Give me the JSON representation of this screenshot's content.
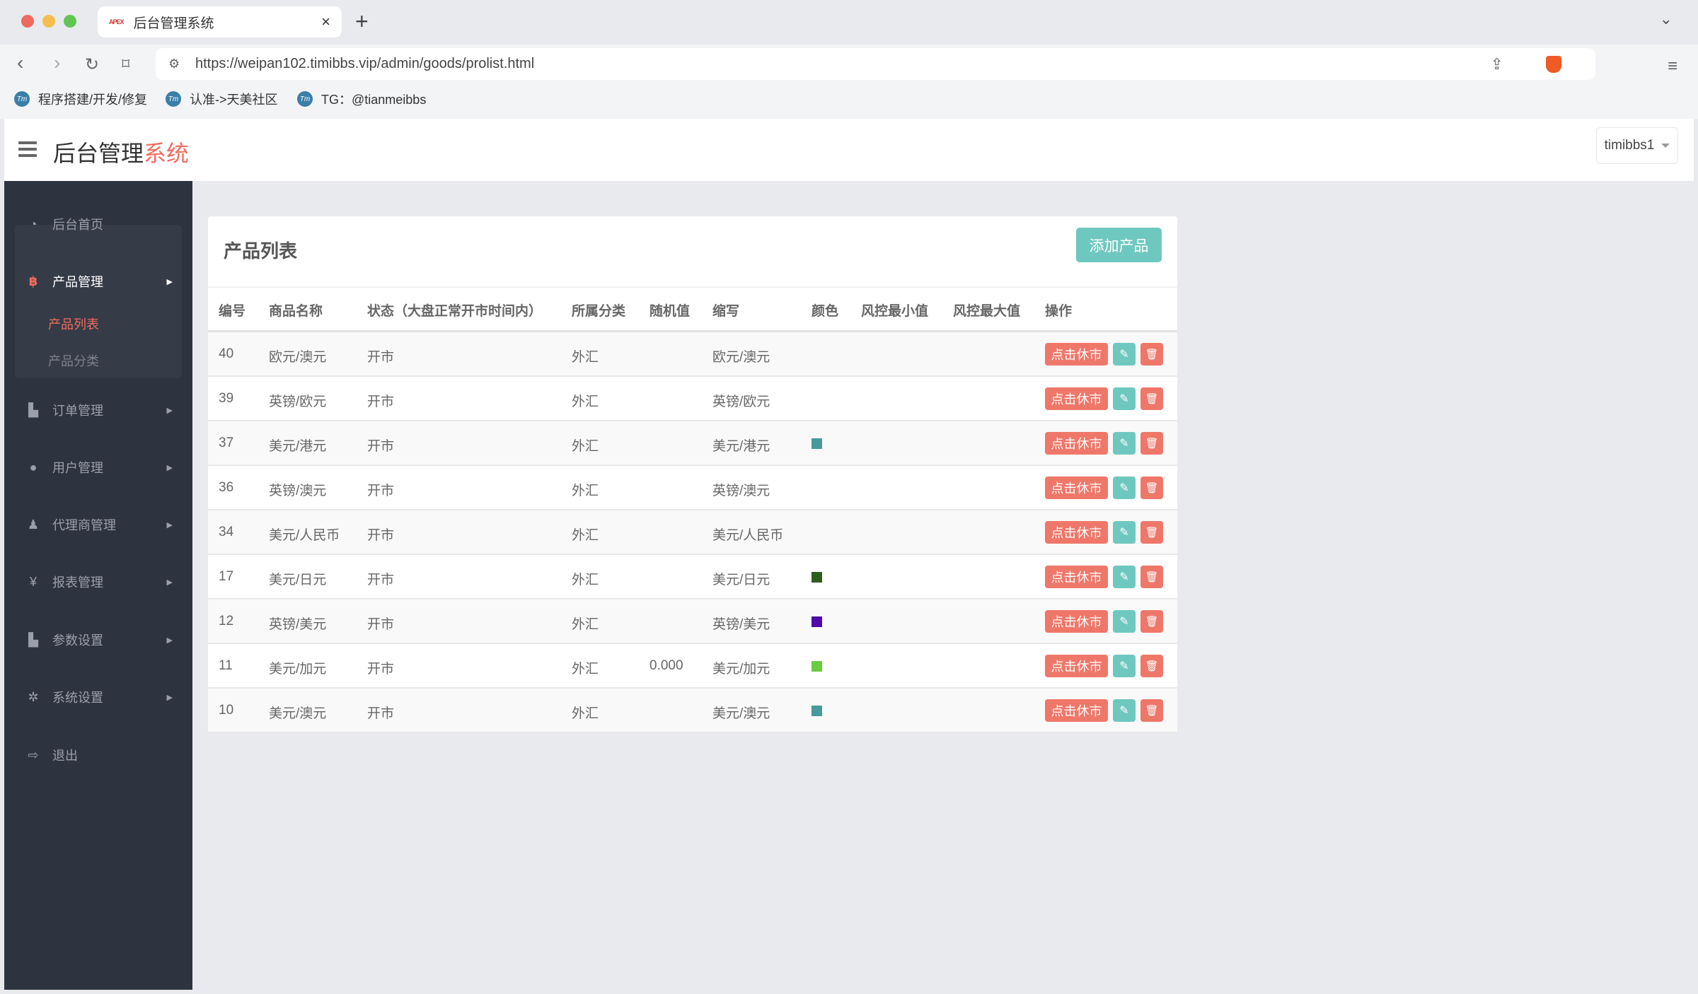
{
  "browser": {
    "tab_title": "后台管理系统",
    "favicon": "APEX",
    "url": "https://weipan102.timibbs.vip/admin/goods/prolist.html",
    "bookmarks": [
      {
        "label": "程序搭建/开发/修复"
      },
      {
        "label": "认准->天美社区"
      },
      {
        "label": "TG：@tianmeibbs"
      }
    ]
  },
  "header": {
    "title_main": "后台管理",
    "title_accent": "系统",
    "user": "timibbs1"
  },
  "sidebar": {
    "items": [
      {
        "label": "后台首页",
        "icon": "dashboard-icon"
      },
      {
        "label": "产品管理",
        "icon": "bitcoin-icon",
        "active": true,
        "children": [
          {
            "label": "产品列表",
            "active": true
          },
          {
            "label": "产品分类"
          }
        ]
      },
      {
        "label": "订单管理",
        "icon": "files-icon"
      },
      {
        "label": "用户管理",
        "icon": "user-icon"
      },
      {
        "label": "代理商管理",
        "icon": "agent-icon"
      },
      {
        "label": "报表管理",
        "icon": "yen-icon"
      },
      {
        "label": "参数设置",
        "icon": "files-icon"
      },
      {
        "label": "系统设置",
        "icon": "gears-icon"
      },
      {
        "label": "退出",
        "icon": "sign-out-icon"
      }
    ]
  },
  "main": {
    "title": "产品列表",
    "add_button": "添加产品",
    "columns": [
      "编号",
      "商品名称",
      "状态（大盘正常开市时间内）",
      "所属分类",
      "随机值",
      "缩写",
      "颜色",
      "风控最小值",
      "风控最大值",
      "操作"
    ],
    "action_label": "点击休市",
    "rows": [
      {
        "id": "40",
        "name": "欧元/澳元",
        "status": "开市",
        "category": "外汇",
        "random": "",
        "abbr": "欧元/澳元",
        "color": ""
      },
      {
        "id": "39",
        "name": "英镑/欧元",
        "status": "开市",
        "category": "外汇",
        "random": "",
        "abbr": "英镑/欧元",
        "color": ""
      },
      {
        "id": "37",
        "name": "美元/港元",
        "status": "开市",
        "category": "外汇",
        "random": "",
        "abbr": "美元/港元",
        "color": "#479a9a"
      },
      {
        "id": "36",
        "name": "英镑/澳元",
        "status": "开市",
        "category": "外汇",
        "random": "",
        "abbr": "英镑/澳元",
        "color": ""
      },
      {
        "id": "34",
        "name": "美元/人民币",
        "status": "开市",
        "category": "外汇",
        "random": "",
        "abbr": "美元/人民币",
        "color": ""
      },
      {
        "id": "17",
        "name": "美元/日元",
        "status": "开市",
        "category": "外汇",
        "random": "",
        "abbr": "美元/日元",
        "color": "#2d5e1c"
      },
      {
        "id": "12",
        "name": "英镑/美元",
        "status": "开市",
        "category": "外汇",
        "random": "",
        "abbr": "英镑/美元",
        "color": "#4e0aa8"
      },
      {
        "id": "11",
        "name": "美元/加元",
        "status": "开市",
        "category": "外汇",
        "random": "0.000",
        "abbr": "美元/加元",
        "color": "#6acc40"
      },
      {
        "id": "10",
        "name": "美元/澳元",
        "status": "开市",
        "category": "外汇",
        "random": "",
        "abbr": "美元/澳元",
        "color": "#479a9a"
      }
    ]
  },
  "colors": {
    "accent": "#ef6c5f",
    "teal": "#6fc8bf",
    "sidebar": "#2e3340"
  }
}
